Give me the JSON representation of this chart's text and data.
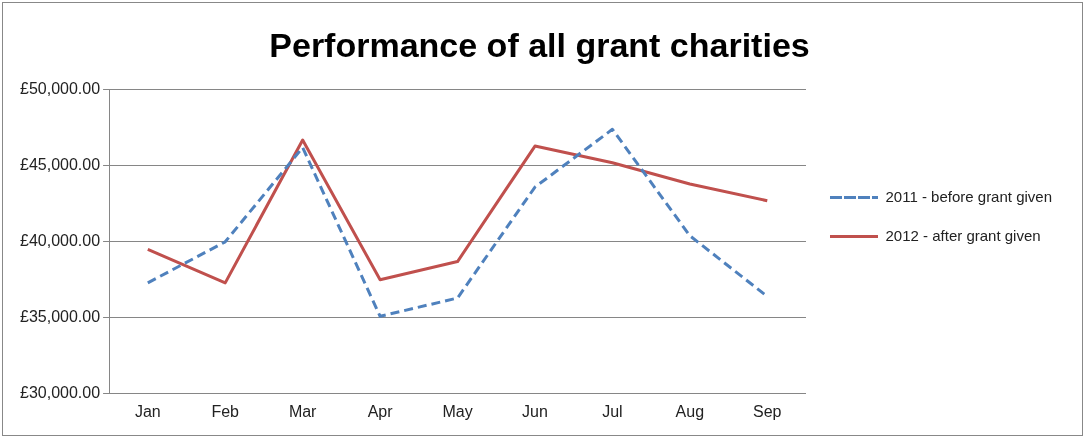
{
  "chart_data": {
    "type": "line",
    "title": "Performance of all grant charities",
    "categories": [
      "Jan",
      "Feb",
      "Mar",
      "Apr",
      "May",
      "Jun",
      "Jul",
      "Aug",
      "Sep"
    ],
    "series": [
      {
        "name": "2011 - before grant given",
        "color": "#4f81bd",
        "line_style": "dashed",
        "values": [
          37300,
          40000,
          46200,
          35100,
          36300,
          43600,
          47400,
          40400,
          36400
        ]
      },
      {
        "name": "2012 - after grant given",
        "color": "#c0504d",
        "line_style": "solid",
        "values": [
          39500,
          37300,
          46700,
          37500,
          38700,
          46300,
          45200,
          43800,
          42700
        ]
      }
    ],
    "ylim": [
      30000,
      50000
    ],
    "yticks": [
      {
        "value": 30000,
        "label": "£30,000.00"
      },
      {
        "value": 35000,
        "label": "£35,000.00"
      },
      {
        "value": 40000,
        "label": "£40,000.00"
      },
      {
        "value": 45000,
        "label": "£45,000.00"
      },
      {
        "value": 50000,
        "label": "£50,000.00"
      }
    ],
    "grid": "y",
    "legend": "right",
    "marker": "none"
  }
}
